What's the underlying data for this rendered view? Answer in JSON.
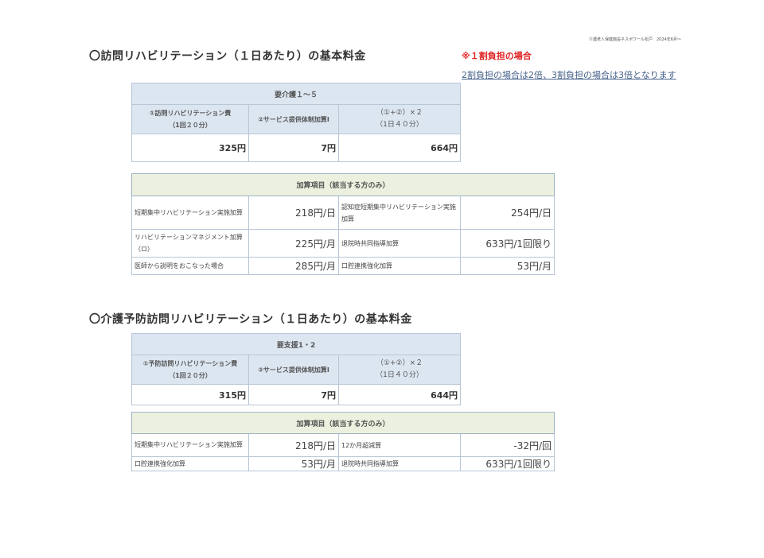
{
  "header": {
    "org": "介護老人保健施設ネスポワール松戸　2024年6月～",
    "note_red": "※１割負担の場合",
    "note": "2割負担の場合は2倍、3割負担の場合は3倍となります"
  },
  "section1": {
    "title": "〇訪問リハビリテーション（１日あたり）の基本料金",
    "base": {
      "header": "要介護１～５",
      "col1": "①訪問リハビリテーション費",
      "col1b": "（1回２０分）",
      "col2": "②サービス提供体制加算Ⅰ",
      "col3": "（①+②）×２",
      "col3b": "（1日４０分）",
      "v1": "325円",
      "v2": "7円",
      "v3": "664円"
    },
    "addons": {
      "header": "加算項目（該当する方のみ）",
      "rows": [
        {
          "l1": "短期集中リハビリテーション実施加算",
          "v1": "218円/日",
          "l2": "認知症短期集中リハビリテーション実施加算",
          "v2": "254円/日"
        },
        {
          "l1": "リハビリテーションマネジメント加算（ロ）",
          "v1": "225円/月",
          "l2": "退院時共同指導加算",
          "v2": "633円/1回限り"
        },
        {
          "l1": "医師から説明をおこなった場合",
          "v1": "285円/月",
          "l2": "口腔連携強化加算",
          "v2": "53円/月"
        }
      ]
    }
  },
  "section2": {
    "title": "〇介護予防訪問リハビリテーション（１日あたり）の基本料金",
    "base": {
      "header": "要支援1・2",
      "col1": "①予防訪問リハビリテーション費",
      "col1b": "（1回２０分）",
      "col2": "②サービス提供体制加算Ⅰ",
      "col3": "（①+②）×２",
      "col3b": "（1日４０分）",
      "v1": "315円",
      "v2": "7円",
      "v3": "644円"
    },
    "addons": {
      "header": "加算項目（該当する方のみ）",
      "rows": [
        {
          "l1": "短期集中リハビリテーション実施加算",
          "v1": "218円/日",
          "l2": "12か月超減算",
          "v2": "-32円/回"
        },
        {
          "l1": "口腔連携強化加算",
          "v1": "53円/月",
          "l2": "退院時共同指導加算",
          "v2": "633円/1回限り"
        }
      ]
    }
  }
}
